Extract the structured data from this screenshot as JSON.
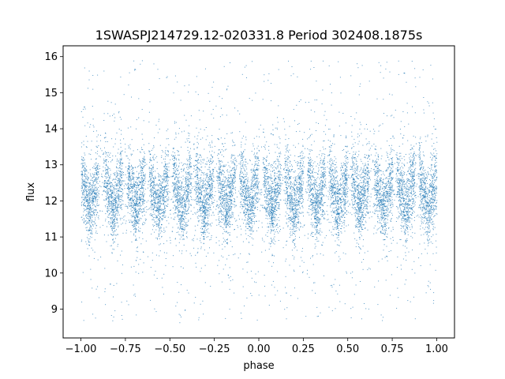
{
  "chart_data": {
    "type": "scatter",
    "title": "1SWASPJ214729.12-020331.8 Period 302408.1875s",
    "xlabel": "phase",
    "ylabel": "flux",
    "xlim": [
      -1.1,
      1.1
    ],
    "ylim": [
      8.2,
      16.3
    ],
    "grid": false,
    "legend": "none",
    "xticks": [
      {
        "value": -1.0,
        "label": "−1.00"
      },
      {
        "value": -0.75,
        "label": "−0.75"
      },
      {
        "value": -0.5,
        "label": "−0.50"
      },
      {
        "value": -0.25,
        "label": "−0.25"
      },
      {
        "value": 0.0,
        "label": "0.00"
      },
      {
        "value": 0.25,
        "label": "0.25"
      },
      {
        "value": 0.5,
        "label": "0.50"
      },
      {
        "value": 0.75,
        "label": "0.75"
      },
      {
        "value": 1.0,
        "label": "1.00"
      }
    ],
    "yticks": [
      {
        "value": 9,
        "label": "9"
      },
      {
        "value": 10,
        "label": "10"
      },
      {
        "value": 11,
        "label": "11"
      },
      {
        "value": 12,
        "label": "12"
      },
      {
        "value": 13,
        "label": "13"
      },
      {
        "value": 14,
        "label": "14"
      },
      {
        "value": 15,
        "label": "15"
      },
      {
        "value": 16,
        "label": "16"
      }
    ],
    "series": [
      {
        "color": "#1f77b4",
        "marker": "dot",
        "phase_range": [
          -1.0,
          1.0
        ],
        "flux_core_range": [
          10.6,
          13.8
        ],
        "flux_outlier_range": [
          8.6,
          15.9
        ],
        "stripe_phases": [
          -0.975,
          -0.93,
          -0.845,
          -0.795,
          -0.715,
          -0.67,
          -0.59,
          -0.54,
          -0.46,
          -0.41,
          -0.33,
          -0.285,
          -0.205,
          -0.16,
          -0.08,
          -0.03,
          0.05,
          0.095,
          0.17,
          0.22,
          0.3,
          0.345,
          0.42,
          0.47,
          0.545,
          0.59,
          0.675,
          0.725,
          0.8,
          0.85,
          0.925,
          0.975
        ]
      }
    ]
  }
}
